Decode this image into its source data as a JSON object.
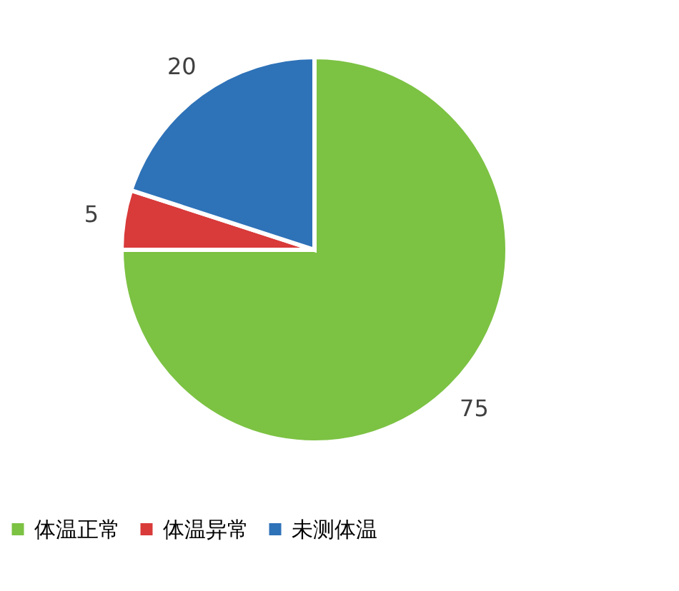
{
  "chart_data": {
    "type": "pie",
    "categories": [
      "体温正常",
      "体温异常",
      "未测体温"
    ],
    "values": [
      75,
      5,
      20
    ],
    "colors": [
      "#7cc243",
      "#d93a3a",
      "#2e72b8"
    ],
    "data_labels": true,
    "legend": "bottom"
  }
}
